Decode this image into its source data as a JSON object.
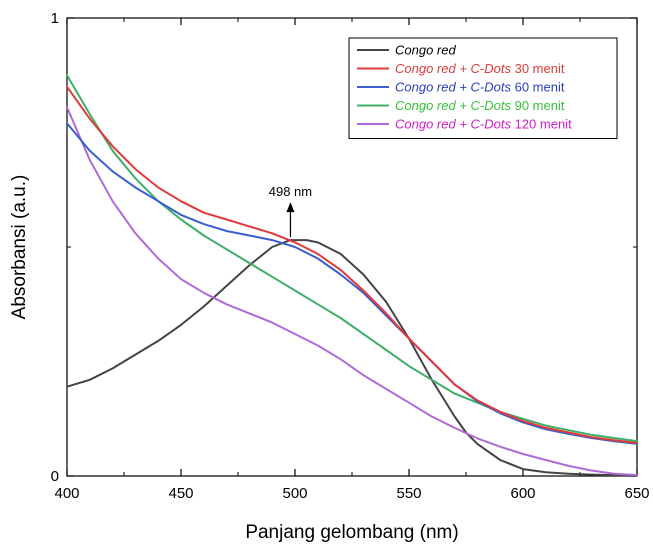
{
  "chart_data": {
    "type": "line",
    "xlabel": "Panjang gelombang (nm)",
    "ylabel": "Absorbansi (a.u.)",
    "xlim": [
      400,
      650
    ],
    "ylim": [
      0,
      1
    ],
    "x_ticks": [
      400,
      450,
      500,
      550,
      600,
      650
    ],
    "x_tick_labels": [
      "400",
      "450",
      "500",
      "550",
      "600",
      "650"
    ],
    "y_ticks": [
      0,
      1
    ],
    "y_tick_labels": [
      "0",
      "1"
    ],
    "grid": false,
    "legend_position": "top-right",
    "series": [
      {
        "name_italic": "Congo red",
        "name_plain": "",
        "color": "#444444",
        "text_color": "#000000",
        "x": [
          400,
          410,
          420,
          430,
          440,
          450,
          460,
          470,
          480,
          490,
          498,
          505,
          510,
          520,
          530,
          540,
          550,
          560,
          570,
          575,
          580,
          590,
          600,
          610,
          620,
          630,
          640,
          650
        ],
        "y": [
          0.195,
          0.21,
          0.235,
          0.265,
          0.295,
          0.33,
          0.37,
          0.415,
          0.46,
          0.5,
          0.515,
          0.515,
          0.51,
          0.485,
          0.44,
          0.38,
          0.3,
          0.21,
          0.13,
          0.095,
          0.07,
          0.035,
          0.015,
          0.008,
          0.005,
          0.003,
          0.002,
          0.002
        ]
      },
      {
        "name_italic": "Congo red + C-Dots",
        "name_plain": " 30 menit",
        "color": "#e03a3a",
        "text_color": "#e03a3a",
        "x": [
          400,
          410,
          420,
          430,
          440,
          450,
          460,
          470,
          480,
          490,
          500,
          510,
          520,
          530,
          540,
          550,
          560,
          570,
          580,
          590,
          600,
          610,
          620,
          630,
          640,
          650
        ],
        "y": [
          0.85,
          0.78,
          0.72,
          0.67,
          0.63,
          0.6,
          0.575,
          0.56,
          0.545,
          0.53,
          0.51,
          0.485,
          0.45,
          0.405,
          0.355,
          0.3,
          0.25,
          0.2,
          0.165,
          0.14,
          0.12,
          0.105,
          0.095,
          0.085,
          0.078,
          0.072
        ]
      },
      {
        "name_italic": "Congo red + C-Dots",
        "name_plain": " 60 menit",
        "color": "#3a5fd0",
        "text_color": "#2a3fb8",
        "x": [
          400,
          410,
          420,
          430,
          440,
          450,
          460,
          470,
          480,
          490,
          500,
          510,
          520,
          530,
          540,
          550,
          560,
          570,
          580,
          590,
          600,
          610,
          620,
          630,
          640,
          650
        ],
        "y": [
          0.77,
          0.71,
          0.665,
          0.63,
          0.6,
          0.57,
          0.55,
          0.535,
          0.525,
          0.515,
          0.5,
          0.475,
          0.44,
          0.4,
          0.35,
          0.3,
          0.25,
          0.2,
          0.163,
          0.137,
          0.117,
          0.102,
          0.092,
          0.083,
          0.076,
          0.07
        ]
      },
      {
        "name_italic": "Congo red + C-Dots",
        "name_plain": " 90 menit",
        "color": "#3fae6a",
        "text_color": "#37c23a",
        "x": [
          400,
          410,
          420,
          430,
          440,
          450,
          460,
          470,
          480,
          490,
          500,
          510,
          520,
          530,
          540,
          550,
          560,
          570,
          580,
          590,
          600,
          610,
          620,
          630,
          640,
          650
        ],
        "y": [
          0.875,
          0.79,
          0.71,
          0.65,
          0.6,
          0.56,
          0.525,
          0.495,
          0.465,
          0.435,
          0.405,
          0.375,
          0.345,
          0.31,
          0.275,
          0.24,
          0.21,
          0.18,
          0.16,
          0.14,
          0.125,
          0.11,
          0.1,
          0.09,
          0.083,
          0.076
        ]
      },
      {
        "name_italic": "Congo red + C-Dots",
        "name_plain": " 120 menit",
        "color": "#b06ad8",
        "text_color": "#d020c8",
        "x": [
          400,
          410,
          420,
          430,
          440,
          450,
          460,
          470,
          480,
          490,
          500,
          510,
          520,
          530,
          540,
          550,
          560,
          570,
          580,
          590,
          600,
          610,
          620,
          630,
          640,
          650
        ],
        "y": [
          0.805,
          0.69,
          0.6,
          0.53,
          0.475,
          0.43,
          0.4,
          0.375,
          0.355,
          0.335,
          0.31,
          0.285,
          0.255,
          0.22,
          0.19,
          0.16,
          0.13,
          0.105,
          0.082,
          0.064,
          0.048,
          0.035,
          0.022,
          0.012,
          0.005,
          0.002
        ]
      }
    ],
    "annotation": {
      "text": "498 nm",
      "x": 498,
      "y": 0.515
    }
  }
}
